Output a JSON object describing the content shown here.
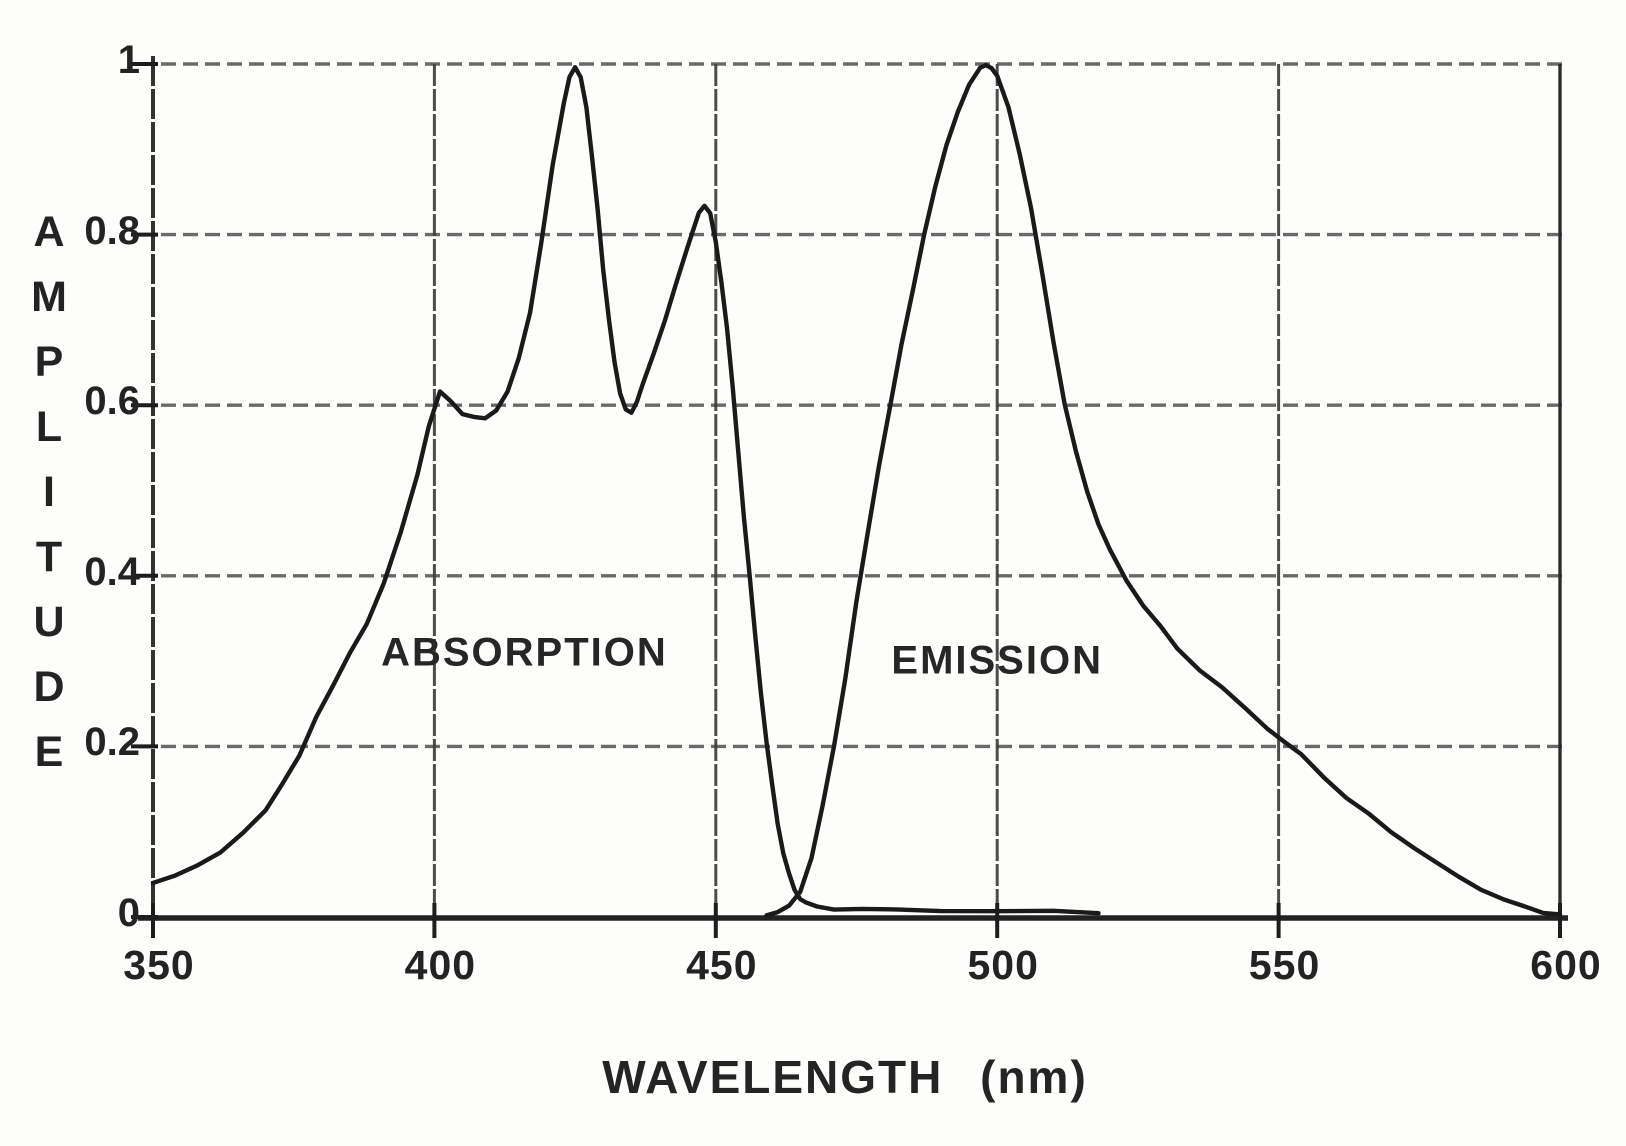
{
  "figure": {
    "background": "#fdfdfb",
    "ink_color": "#1a1a1a",
    "grid_color": "#5a5a5a",
    "axis_color": "#222222"
  },
  "chart_data": {
    "type": "line",
    "title": "",
    "xlabel": "WAVELENGTH (nm)",
    "ylabel": "AMPLITUDE",
    "xlim": [
      350,
      600
    ],
    "ylim": [
      0,
      1
    ],
    "x_ticks": [
      350,
      400,
      450,
      500,
      550,
      600
    ],
    "x_tick_labels": [
      "350",
      "400",
      "450",
      "500",
      "550",
      "600"
    ],
    "y_ticks": [
      1,
      0.8,
      0.6,
      0.4,
      0.2,
      0
    ],
    "y_tick_labels": [
      "1",
      "0.8",
      "0.6",
      "0.4",
      "0.2",
      "0"
    ],
    "grid": {
      "vertical_at": [
        400,
        450,
        500,
        550
      ],
      "horizontal_at": [
        0.2,
        0.4,
        0.6,
        0.8,
        1.0
      ],
      "style": "dashed"
    },
    "legend_position": "none",
    "annotations": [
      {
        "text": "ABSORPTION",
        "wavelength": 416,
        "amplitude": 0.31
      },
      {
        "text": "EMISSION",
        "wavelength": 500,
        "amplitude": 0.3
      }
    ],
    "series": [
      {
        "name": "ABSORPTION",
        "points": [
          [
            350,
            0.04
          ],
          [
            354,
            0.05
          ],
          [
            358,
            0.06
          ],
          [
            362,
            0.075
          ],
          [
            366,
            0.1
          ],
          [
            370,
            0.125
          ],
          [
            373,
            0.155
          ],
          [
            376,
            0.19
          ],
          [
            379,
            0.235
          ],
          [
            382,
            0.27
          ],
          [
            385,
            0.31
          ],
          [
            388,
            0.345
          ],
          [
            391,
            0.39
          ],
          [
            394,
            0.45
          ],
          [
            397,
            0.52
          ],
          [
            399,
            0.575
          ],
          [
            401,
            0.615
          ],
          [
            403,
            0.605
          ],
          [
            405,
            0.59
          ],
          [
            407,
            0.585
          ],
          [
            409,
            0.585
          ],
          [
            411,
            0.595
          ],
          [
            413,
            0.615
          ],
          [
            415,
            0.655
          ],
          [
            417,
            0.71
          ],
          [
            419,
            0.79
          ],
          [
            421,
            0.88
          ],
          [
            423,
            0.955
          ],
          [
            424,
            0.985
          ],
          [
            425,
            0.995
          ],
          [
            426,
            0.985
          ],
          [
            427,
            0.95
          ],
          [
            428,
            0.89
          ],
          [
            429,
            0.83
          ],
          [
            430,
            0.76
          ],
          [
            431,
            0.7
          ],
          [
            432,
            0.65
          ],
          [
            433,
            0.615
          ],
          [
            434,
            0.595
          ],
          [
            435,
            0.59
          ],
          [
            436,
            0.605
          ],
          [
            437,
            0.625
          ],
          [
            439,
            0.66
          ],
          [
            441,
            0.7
          ],
          [
            443,
            0.745
          ],
          [
            445,
            0.785
          ],
          [
            447,
            0.825
          ],
          [
            448,
            0.835
          ],
          [
            449,
            0.825
          ],
          [
            450,
            0.79
          ],
          [
            451,
            0.745
          ],
          [
            452,
            0.69
          ],
          [
            453,
            0.62
          ],
          [
            454,
            0.545
          ],
          [
            455,
            0.47
          ],
          [
            456,
            0.4
          ],
          [
            457,
            0.33
          ],
          [
            458,
            0.265
          ],
          [
            459,
            0.205
          ],
          [
            460,
            0.155
          ],
          [
            461,
            0.11
          ],
          [
            462,
            0.075
          ],
          [
            463,
            0.05
          ],
          [
            464,
            0.032
          ],
          [
            465,
            0.022
          ],
          [
            466,
            0.016
          ],
          [
            468,
            0.012
          ],
          [
            471,
            0.01
          ],
          [
            476,
            0.009
          ],
          [
            482,
            0.008
          ],
          [
            490,
            0.008
          ],
          [
            500,
            0.007
          ],
          [
            510,
            0.006
          ],
          [
            518,
            0.005
          ]
        ]
      },
      {
        "name": "EMISSION",
        "points": [
          [
            459,
            0.003
          ],
          [
            461,
            0.006
          ],
          [
            463,
            0.012
          ],
          [
            465,
            0.03
          ],
          [
            467,
            0.07
          ],
          [
            469,
            0.13
          ],
          [
            471,
            0.2
          ],
          [
            473,
            0.28
          ],
          [
            475,
            0.37
          ],
          [
            477,
            0.45
          ],
          [
            479,
            0.53
          ],
          [
            481,
            0.6
          ],
          [
            483,
            0.67
          ],
          [
            485,
            0.735
          ],
          [
            487,
            0.8
          ],
          [
            489,
            0.855
          ],
          [
            491,
            0.905
          ],
          [
            493,
            0.945
          ],
          [
            495,
            0.975
          ],
          [
            497,
            0.995
          ],
          [
            498,
            1.0
          ],
          [
            499,
            0.995
          ],
          [
            500,
            0.985
          ],
          [
            502,
            0.95
          ],
          [
            504,
            0.895
          ],
          [
            506,
            0.83
          ],
          [
            508,
            0.755
          ],
          [
            510,
            0.675
          ],
          [
            512,
            0.6
          ],
          [
            514,
            0.545
          ],
          [
            516,
            0.5
          ],
          [
            518,
            0.46
          ],
          [
            520,
            0.43
          ],
          [
            523,
            0.395
          ],
          [
            526,
            0.365
          ],
          [
            529,
            0.34
          ],
          [
            532,
            0.315
          ],
          [
            536,
            0.29
          ],
          [
            540,
            0.268
          ],
          [
            544,
            0.245
          ],
          [
            548,
            0.222
          ],
          [
            551,
            0.205
          ],
          [
            554,
            0.19
          ],
          [
            558,
            0.165
          ],
          [
            562,
            0.14
          ],
          [
            566,
            0.12
          ],
          [
            570,
            0.1
          ],
          [
            574,
            0.082
          ],
          [
            578,
            0.063
          ],
          [
            582,
            0.047
          ],
          [
            586,
            0.033
          ],
          [
            590,
            0.02
          ],
          [
            594,
            0.011
          ],
          [
            597,
            0.006
          ],
          [
            600,
            0.003
          ]
        ]
      }
    ]
  }
}
